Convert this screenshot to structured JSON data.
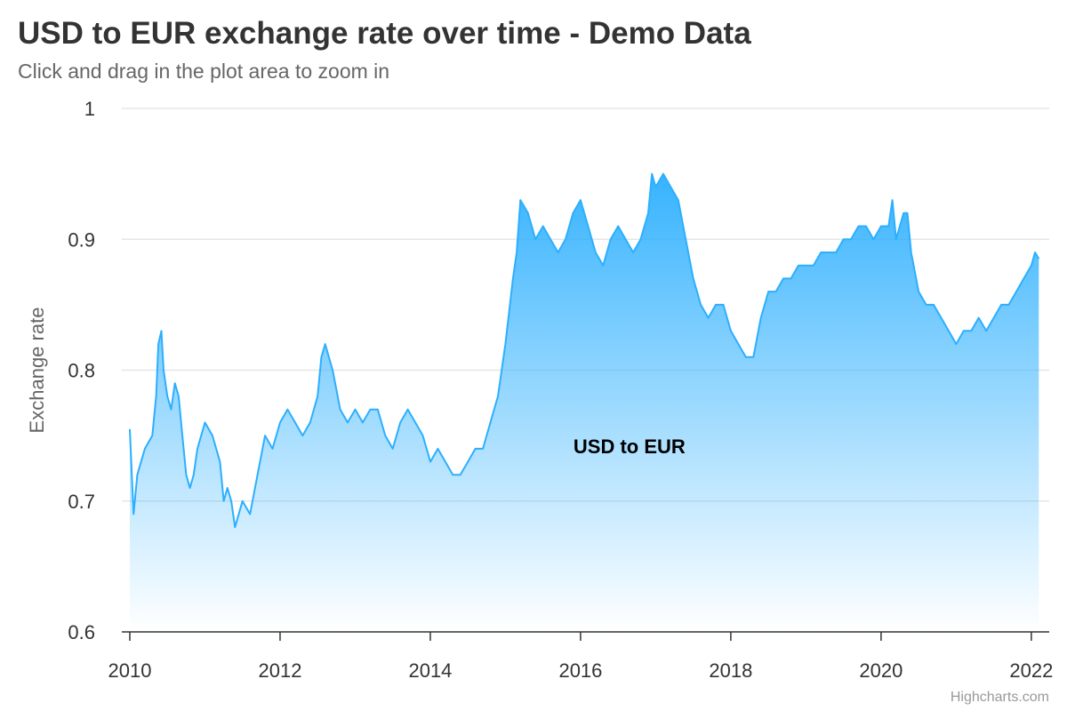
{
  "header": {
    "title": "USD to EUR exchange rate over time - Demo Data",
    "subtitle": "Click and drag in the plot area to zoom in"
  },
  "credits": "Highcharts.com",
  "colors": {
    "line": "#2caffe",
    "grid": "#e6e6e6",
    "axis": "#333333"
  },
  "chart_data": {
    "type": "area",
    "title": "USD to EUR exchange rate over time - Demo Data",
    "subtitle": "Click and drag in the plot area to zoom in",
    "xlabel": "",
    "ylabel": "Exchange rate",
    "xlim": [
      2010,
      2022.12
    ],
    "ylim": [
      0.6,
      1.0
    ],
    "x_ticks": [
      "2010",
      "2012",
      "2014",
      "2016",
      "2018",
      "2020",
      "2022"
    ],
    "y_ticks": [
      "0.6",
      "0.7",
      "0.8",
      "0.9",
      "1"
    ],
    "grid": true,
    "legend": "none",
    "series": [
      {
        "name": "USD to EUR",
        "x": [
          2010.0,
          2010.05,
          2010.1,
          2010.2,
          2010.3,
          2010.35,
          2010.38,
          2010.42,
          2010.45,
          2010.5,
          2010.55,
          2010.6,
          2010.65,
          2010.7,
          2010.75,
          2010.8,
          2010.85,
          2010.9,
          2011.0,
          2011.1,
          2011.2,
          2011.25,
          2011.3,
          2011.35,
          2011.4,
          2011.5,
          2011.6,
          2011.7,
          2011.8,
          2011.9,
          2012.0,
          2012.1,
          2012.2,
          2012.3,
          2012.4,
          2012.5,
          2012.55,
          2012.6,
          2012.7,
          2012.8,
          2012.9,
          2013.0,
          2013.1,
          2013.2,
          2013.3,
          2013.4,
          2013.5,
          2013.6,
          2013.7,
          2013.8,
          2013.9,
          2014.0,
          2014.1,
          2014.2,
          2014.3,
          2014.4,
          2014.5,
          2014.6,
          2014.7,
          2014.8,
          2014.9,
          2015.0,
          2015.1,
          2015.15,
          2015.2,
          2015.3,
          2015.4,
          2015.5,
          2015.6,
          2015.7,
          2015.8,
          2015.9,
          2016.0,
          2016.1,
          2016.2,
          2016.3,
          2016.4,
          2016.5,
          2016.6,
          2016.7,
          2016.8,
          2016.9,
          2016.95,
          2017.0,
          2017.1,
          2017.2,
          2017.3,
          2017.4,
          2017.5,
          2017.6,
          2017.7,
          2017.8,
          2017.9,
          2018.0,
          2018.1,
          2018.2,
          2018.3,
          2018.4,
          2018.5,
          2018.6,
          2018.7,
          2018.8,
          2018.9,
          2019.0,
          2019.1,
          2019.2,
          2019.3,
          2019.4,
          2019.5,
          2019.6,
          2019.7,
          2019.8,
          2019.9,
          2020.0,
          2020.1,
          2020.15,
          2020.2,
          2020.3,
          2020.35,
          2020.4,
          2020.5,
          2020.6,
          2020.7,
          2020.8,
          2020.9,
          2021.0,
          2021.1,
          2021.2,
          2021.3,
          2021.4,
          2021.5,
          2021.6,
          2021.7,
          2021.8,
          2021.9,
          2022.0,
          2022.05,
          2022.1
        ],
        "values": [
          0.755,
          0.69,
          0.72,
          0.74,
          0.75,
          0.78,
          0.82,
          0.83,
          0.8,
          0.78,
          0.77,
          0.79,
          0.78,
          0.75,
          0.72,
          0.71,
          0.72,
          0.74,
          0.76,
          0.75,
          0.73,
          0.7,
          0.71,
          0.7,
          0.68,
          0.7,
          0.69,
          0.72,
          0.75,
          0.74,
          0.76,
          0.77,
          0.76,
          0.75,
          0.76,
          0.78,
          0.81,
          0.82,
          0.8,
          0.77,
          0.76,
          0.77,
          0.76,
          0.77,
          0.77,
          0.75,
          0.74,
          0.76,
          0.77,
          0.76,
          0.75,
          0.73,
          0.74,
          0.73,
          0.72,
          0.72,
          0.73,
          0.74,
          0.74,
          0.76,
          0.78,
          0.82,
          0.87,
          0.89,
          0.93,
          0.92,
          0.9,
          0.91,
          0.9,
          0.89,
          0.9,
          0.92,
          0.93,
          0.91,
          0.89,
          0.88,
          0.9,
          0.91,
          0.9,
          0.89,
          0.9,
          0.92,
          0.95,
          0.94,
          0.95,
          0.94,
          0.93,
          0.9,
          0.87,
          0.85,
          0.84,
          0.85,
          0.85,
          0.83,
          0.82,
          0.81,
          0.81,
          0.84,
          0.86,
          0.86,
          0.87,
          0.87,
          0.88,
          0.88,
          0.88,
          0.89,
          0.89,
          0.89,
          0.9,
          0.9,
          0.91,
          0.91,
          0.9,
          0.91,
          0.91,
          0.93,
          0.9,
          0.92,
          0.92,
          0.89,
          0.86,
          0.85,
          0.85,
          0.84,
          0.83,
          0.82,
          0.83,
          0.83,
          0.84,
          0.83,
          0.84,
          0.85,
          0.85,
          0.86,
          0.87,
          0.88,
          0.89,
          0.885
        ]
      }
    ],
    "annotations": [
      {
        "text": "USD to EUR",
        "x": 2016.65,
        "y": 0.742
      }
    ]
  }
}
